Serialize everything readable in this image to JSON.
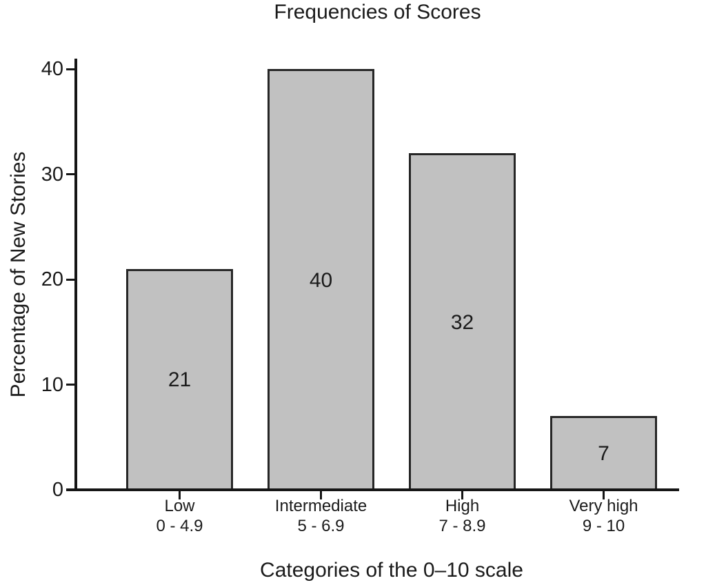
{
  "chart_data": {
    "type": "bar",
    "title": "Frequencies of Scores",
    "xlabel": "Categories of the 0–10 scale",
    "ylabel": "Percentage of New Stories",
    "categories": [
      "Low",
      "Intermediate",
      "High",
      "Very high"
    ],
    "category_ranges": [
      "0 - 4.9",
      "5 - 6.9",
      "7 - 8.9",
      "9 - 10"
    ],
    "values": [
      21,
      40,
      32,
      7
    ],
    "value_labels_inside_bars": true,
    "ylim": [
      0,
      40
    ],
    "yticks": [
      0,
      10,
      20,
      30,
      40
    ],
    "grid": false,
    "legend": "none",
    "colors": {
      "bar_fill": "#c1c1c1",
      "bar_border": "#262626",
      "axis": "#161616",
      "text": "#1a1a1a",
      "background": "#ffffff"
    }
  }
}
